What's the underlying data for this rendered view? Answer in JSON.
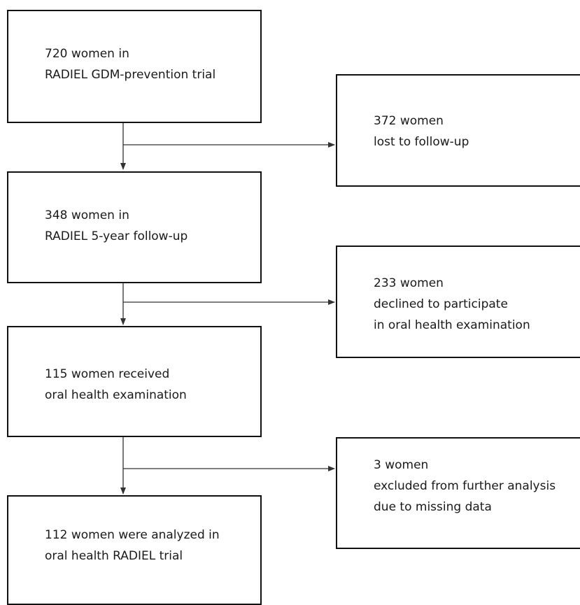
{
  "flowchart": {
    "main": [
      {
        "lines": [
          "720 women in",
          "RADIEL GDM-prevention trial"
        ]
      },
      {
        "lines": [
          "348 women in",
          "RADIEL 5-year follow-up"
        ]
      },
      {
        "lines": [
          "115 women received",
          "oral health examination"
        ]
      },
      {
        "lines": [
          "112 women were analyzed in",
          "oral health RADIEL trial"
        ]
      }
    ],
    "side": [
      {
        "lines": [
          "372 women",
          "lost to follow-up"
        ]
      },
      {
        "lines": [
          "233 women",
          "declined to participate",
          "in oral health examination"
        ]
      },
      {
        "lines": [
          "3 women",
          "excluded from further analysis",
          "due to missing data"
        ]
      }
    ]
  },
  "colors": {
    "border": "#111111",
    "connector": "#333333",
    "text": "#1a1a1a",
    "background": "#ffffff"
  }
}
